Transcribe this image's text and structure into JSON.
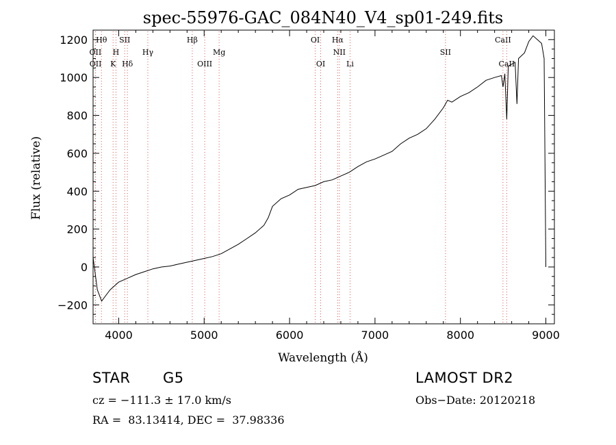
{
  "title": "spec-55976-GAC_084N40_V4_sp01-249.fits",
  "colors": {
    "line_marker": "#d9534f",
    "spectrum": "#000000",
    "axes": "#000000",
    "background": "#ffffff"
  },
  "info": {
    "object_class": "STAR",
    "subclass": "G5",
    "survey": "LAMOST DR2",
    "redshift_text": "cz = −111.3 ± 17.0 km/s",
    "obs_date_text": "Obs−Date: 20120218",
    "coords_text": "RA =  83.13414, DEC =  37.98336"
  },
  "chart_data": {
    "type": "line",
    "title": "spec-55976-GAC_084N40_V4_sp01-249.fits",
    "xlabel": "Wavelength (Å)",
    "ylabel": "Flux (relative)",
    "xlim": [
      3700,
      9100
    ],
    "ylim": [
      -300,
      1250
    ],
    "xticks": [
      4000,
      5000,
      6000,
      7000,
      8000,
      9000
    ],
    "yticks": [
      -200,
      0,
      200,
      400,
      600,
      800,
      1000,
      1200
    ],
    "grid": false,
    "legend": "none",
    "series": [
      {
        "x": [
          3700,
          3750,
          3800,
          3850,
          3900,
          3950,
          4000,
          4100,
          4200,
          4300,
          4400,
          4500,
          4600,
          4700,
          4800,
          4900,
          5000,
          5100,
          5200,
          5300,
          5400,
          5500,
          5600,
          5700,
          5750,
          5800,
          5900,
          6000,
          6100,
          6200,
          6300,
          6400,
          6500,
          6600,
          6700,
          6800,
          6900,
          7000,
          7100,
          7200,
          7300,
          7400,
          7500,
          7600,
          7700,
          7800,
          7850,
          7900,
          8000,
          8100,
          8200,
          8300,
          8400,
          8480,
          8498,
          8520,
          8542,
          8560,
          8600,
          8640,
          8662,
          8680,
          8750,
          8800,
          8850,
          8900,
          8950,
          8980,
          9000
        ],
        "y": [
          50,
          -120,
          -180,
          -150,
          -120,
          -100,
          -80,
          -60,
          -40,
          -25,
          -10,
          0,
          5,
          15,
          25,
          35,
          45,
          55,
          70,
          95,
          120,
          150,
          180,
          220,
          260,
          320,
          360,
          380,
          410,
          420,
          430,
          450,
          460,
          480,
          500,
          530,
          555,
          570,
          590,
          610,
          650,
          680,
          700,
          730,
          780,
          840,
          880,
          870,
          900,
          920,
          950,
          985,
          1000,
          1010,
          950,
          1020,
          780,
          1060,
          1070,
          1080,
          860,
          1100,
          1130,
          1190,
          1220,
          1200,
          1180,
          1100,
          0
        ]
      }
    ],
    "line_markers": [
      {
        "label": "Hθ",
        "wavelength": 3798,
        "row": 0
      },
      {
        "label": "OII",
        "wavelength": 3727,
        "row": 1
      },
      {
        "label": "OII",
        "wavelength": 3729,
        "row": 2
      },
      {
        "label": "H",
        "wavelength": 3968,
        "row": 1
      },
      {
        "label": "K",
        "wavelength": 3934,
        "row": 2
      },
      {
        "label": "SII",
        "wavelength": 4070,
        "row": 0
      },
      {
        "label": "Hδ",
        "wavelength": 4102,
        "row": 2
      },
      {
        "label": "Hγ",
        "wavelength": 4341,
        "row": 1
      },
      {
        "label": "Hβ",
        "wavelength": 4861,
        "row": 0
      },
      {
        "label": "OIII",
        "wavelength": 5007,
        "row": 2
      },
      {
        "label": "Mg",
        "wavelength": 5175,
        "row": 1
      },
      {
        "label": "OI",
        "wavelength": 6300,
        "row": 0
      },
      {
        "label": "OI",
        "wavelength": 6364,
        "row": 2
      },
      {
        "label": "Hα",
        "wavelength": 6563,
        "row": 0
      },
      {
        "label": "NII",
        "wavelength": 6583,
        "row": 1
      },
      {
        "label": "Li",
        "wavelength": 6708,
        "row": 2
      },
      {
        "label": "SII",
        "wavelength": 7825,
        "row": 1
      },
      {
        "label": "CaII",
        "wavelength": 8498,
        "row": 0
      },
      {
        "label": "CaII",
        "wavelength": 8542,
        "row": 2
      }
    ]
  }
}
